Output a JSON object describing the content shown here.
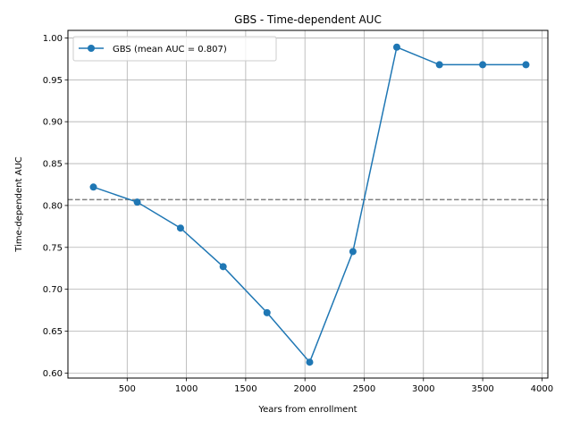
{
  "chart_data": {
    "type": "line",
    "title": "GBS - Time-dependent AUC",
    "xlabel": "Years from enrollment",
    "ylabel": "Time-dependent AUC",
    "xlim": [
      0,
      4050
    ],
    "ylim": [
      0.594,
      1.009
    ],
    "xticks": [
      500,
      1000,
      1500,
      2000,
      2500,
      3000,
      3500,
      4000
    ],
    "yticks": [
      0.6,
      0.65,
      0.7,
      0.75,
      0.8,
      0.85,
      0.9,
      0.95,
      1.0
    ],
    "grid": true,
    "legend_position": "top-left",
    "series": [
      {
        "name": "GBS (mean AUC = 0.807)",
        "color": "#1f77b4",
        "marker": "circle",
        "x": [
          215,
          585,
          950,
          1310,
          1680,
          2040,
          2405,
          2775,
          3135,
          3500,
          3865
        ],
        "y": [
          0.822,
          0.804,
          0.773,
          0.727,
          0.672,
          0.613,
          0.745,
          0.989,
          0.968,
          0.968,
          0.968
        ]
      }
    ],
    "reference_line": {
      "y": 0.807,
      "style": "dashed",
      "color": "#808080"
    }
  }
}
